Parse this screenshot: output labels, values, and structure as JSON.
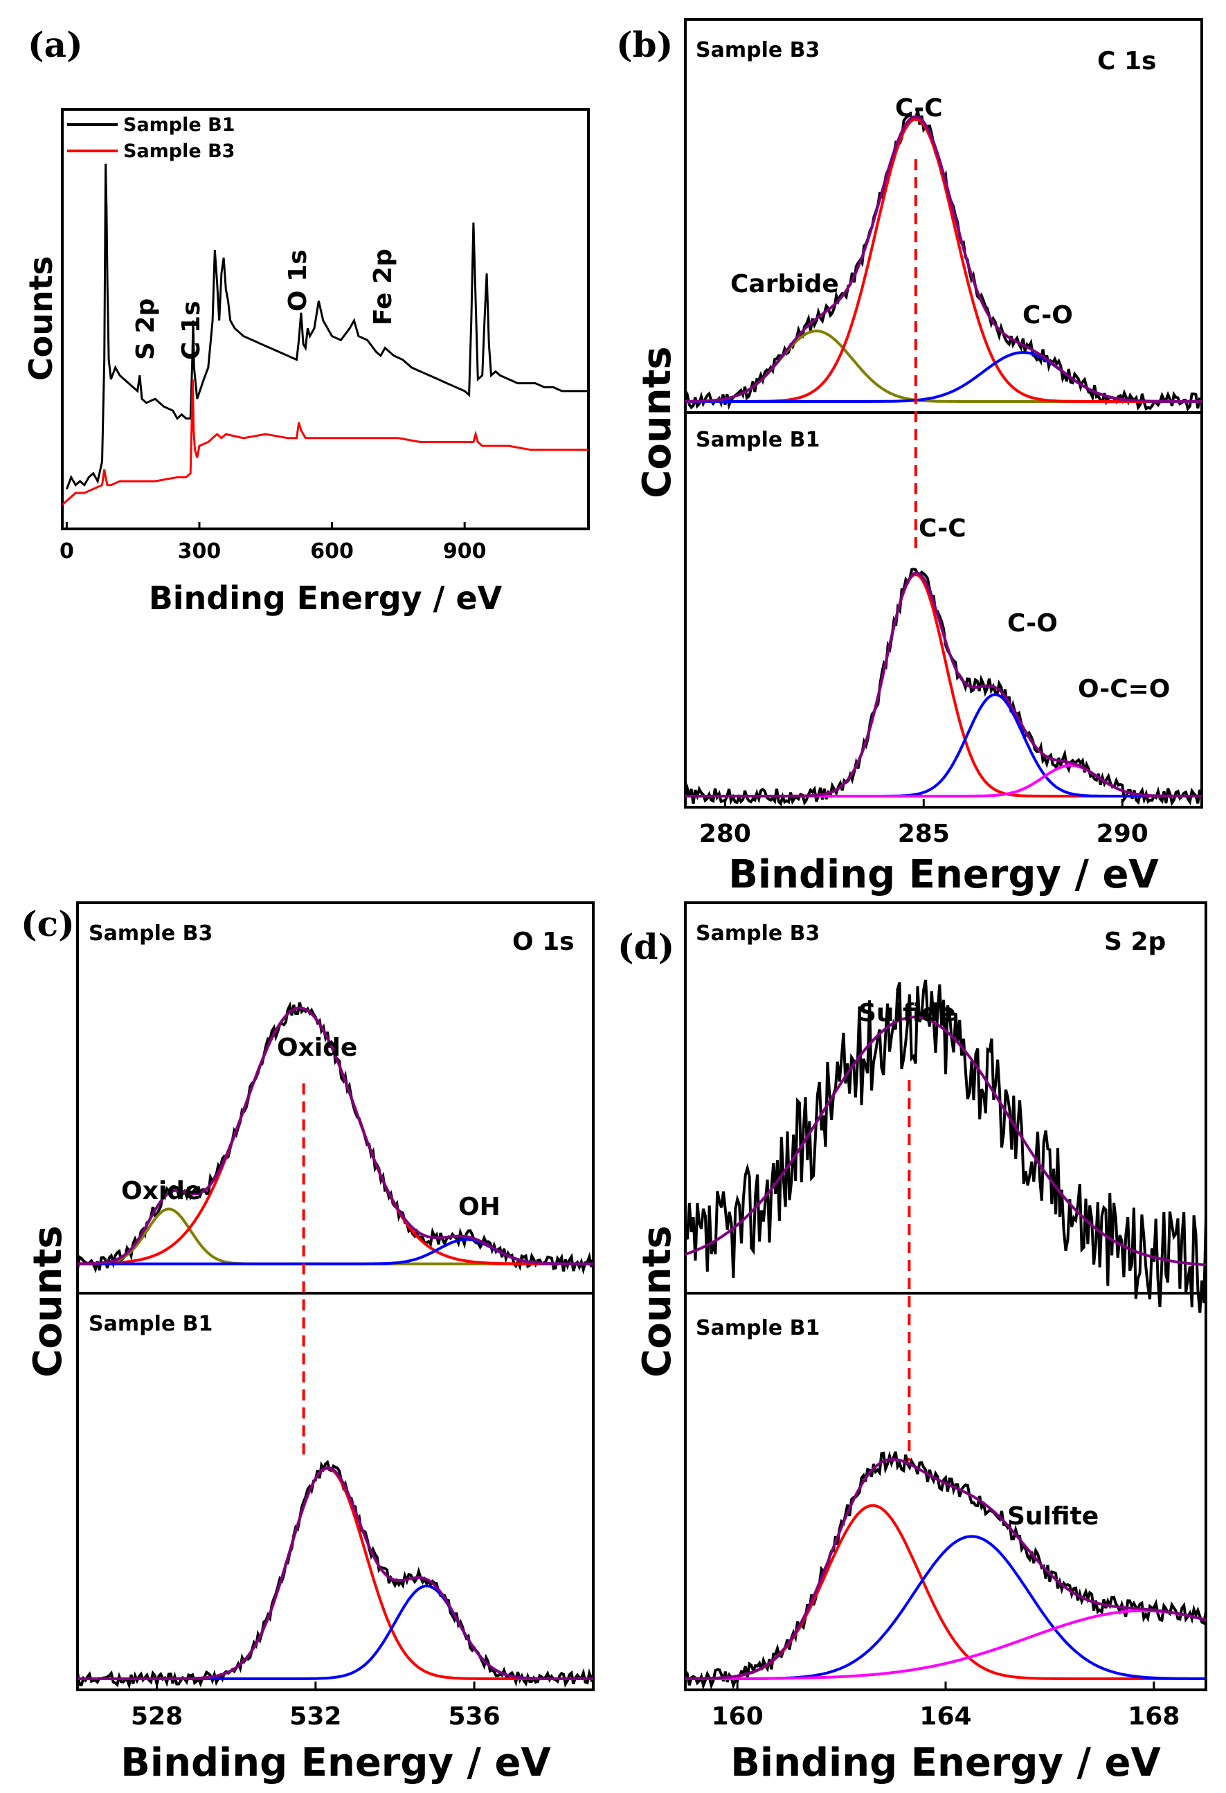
{
  "chart_data": [
    {
      "id": "a",
      "type": "line",
      "panel_label": "(a)",
      "xlabel": "Binding Energy / eV",
      "ylabel": "Counts",
      "xlim": [
        -10,
        1180
      ],
      "ylim": [
        0,
        1
      ],
      "xticks": [
        0,
        300,
        600,
        900
      ],
      "legend_position": "top-left",
      "series": [
        {
          "name": "Sample B1",
          "color": "#000000",
          "x": [
            0,
            10,
            20,
            30,
            40,
            50,
            60,
            70,
            80,
            85,
            88,
            90,
            92,
            95,
            100,
            110,
            120,
            140,
            160,
            165,
            170,
            180,
            200,
            220,
            240,
            250,
            260,
            270,
            280,
            284,
            286,
            288,
            295,
            310,
            320,
            330,
            335,
            340,
            345,
            350,
            355,
            360,
            365,
            370,
            380,
            400,
            420,
            440,
            460,
            480,
            500,
            520,
            525,
            530,
            535,
            540,
            545,
            550,
            560,
            570,
            580,
            590,
            600,
            620,
            640,
            650,
            660,
            680,
            700,
            710,
            720,
            740,
            760,
            780,
            800,
            820,
            840,
            860,
            880,
            900,
            910,
            915,
            920,
            925,
            930,
            940,
            945,
            950,
            955,
            960,
            970,
            980,
            1000,
            1020,
            1040,
            1060,
            1080,
            1100,
            1120,
            1140,
            1160,
            1180
          ],
          "y": [
            0.07,
            0.1,
            0.08,
            0.09,
            0.08,
            0.1,
            0.11,
            0.09,
            0.14,
            0.4,
            0.9,
            0.78,
            0.6,
            0.4,
            0.35,
            0.38,
            0.36,
            0.34,
            0.32,
            0.36,
            0.3,
            0.29,
            0.3,
            0.28,
            0.27,
            0.25,
            0.26,
            0.25,
            0.25,
            0.4,
            0.5,
            0.38,
            0.3,
            0.35,
            0.38,
            0.5,
            0.68,
            0.6,
            0.5,
            0.62,
            0.66,
            0.58,
            0.55,
            0.5,
            0.48,
            0.46,
            0.45,
            0.44,
            0.43,
            0.42,
            0.41,
            0.4,
            0.45,
            0.52,
            0.44,
            0.43,
            0.48,
            0.46,
            0.48,
            0.55,
            0.5,
            0.48,
            0.46,
            0.45,
            0.48,
            0.5,
            0.46,
            0.45,
            0.42,
            0.41,
            0.43,
            0.41,
            0.4,
            0.38,
            0.37,
            0.36,
            0.35,
            0.34,
            0.33,
            0.32,
            0.31,
            0.5,
            0.75,
            0.55,
            0.35,
            0.36,
            0.5,
            0.62,
            0.44,
            0.36,
            0.37,
            0.36,
            0.35,
            0.34,
            0.34,
            0.34,
            0.33,
            0.33,
            0.32,
            0.32,
            0.32,
            0.32
          ]
        },
        {
          "name": "Sample B3",
          "color": "#ff0000",
          "x": [
            -10,
            0,
            10,
            20,
            40,
            60,
            80,
            85,
            88,
            92,
            100,
            120,
            150,
            200,
            250,
            270,
            280,
            283,
            285,
            287,
            290,
            295,
            300,
            320,
            340,
            350,
            360,
            400,
            450,
            500,
            520,
            525,
            530,
            540,
            560,
            600,
            650,
            700,
            750,
            800,
            850,
            900,
            920,
            925,
            930,
            940,
            1000,
            1050,
            1100,
            1150,
            1180
          ],
          "y": [
            0.03,
            0.04,
            0.05,
            0.06,
            0.06,
            0.07,
            0.08,
            0.12,
            0.1,
            0.08,
            0.08,
            0.09,
            0.09,
            0.09,
            0.1,
            0.1,
            0.11,
            0.25,
            0.35,
            0.22,
            0.17,
            0.15,
            0.18,
            0.19,
            0.21,
            0.2,
            0.21,
            0.2,
            0.21,
            0.2,
            0.2,
            0.24,
            0.22,
            0.2,
            0.2,
            0.2,
            0.2,
            0.2,
            0.2,
            0.19,
            0.19,
            0.19,
            0.19,
            0.21,
            0.19,
            0.18,
            0.18,
            0.17,
            0.17,
            0.17,
            0.17
          ]
        }
      ],
      "annotations": [
        {
          "text": "S 2p",
          "x": 165
        },
        {
          "text": "C 1s",
          "x": 285
        },
        {
          "text": "O 1s",
          "x": 531
        },
        {
          "text": "Fe 2p",
          "x": 710
        }
      ]
    },
    {
      "id": "b",
      "type": "line",
      "panel_label": "(b)",
      "title": "C 1s",
      "xlabel": "Binding Energy / eV",
      "ylabel": "Counts",
      "xlim": [
        279,
        292
      ],
      "xticks": [
        280,
        285,
        290
      ],
      "reference_line_x": 284.8,
      "subpanels": [
        {
          "name": "Sample B3",
          "baseline": 0.0,
          "peaks": [
            {
              "label": "Carbide",
              "center": 282.3,
              "sigma": 0.9,
              "amp": 0.23,
              "color": "#808000"
            },
            {
              "label": "C-C",
              "center": 284.8,
              "sigma": 1.0,
              "amp": 0.92,
              "color": "#ff0000"
            },
            {
              "label": "C-O",
              "center": 287.5,
              "sigma": 1.0,
              "amp": 0.16,
              "color": "#0000ff"
            }
          ],
          "envelope_color": "#800080",
          "raw_color": "#000000"
        },
        {
          "name": "Sample B1",
          "baseline": 0.0,
          "peaks": [
            {
              "label": "C-C",
              "center": 284.8,
              "sigma": 0.75,
              "amp": 0.72,
              "color": "#ff0000"
            },
            {
              "label": "C-O",
              "center": 286.8,
              "sigma": 0.7,
              "amp": 0.33,
              "color": "#0000ff"
            },
            {
              "label": "O-C=O",
              "center": 288.7,
              "sigma": 0.7,
              "amp": 0.1,
              "color": "#ff00ff"
            }
          ],
          "envelope_color": "#800080",
          "raw_color": "#000000"
        }
      ]
    },
    {
      "id": "c",
      "type": "line",
      "panel_label": "(c)",
      "title": "O 1s",
      "xlabel": "Binding Energy / eV",
      "ylabel": "Counts",
      "xlim": [
        526,
        539
      ],
      "xticks": [
        528,
        532,
        536
      ],
      "reference_line_x": 531.7,
      "subpanels": [
        {
          "name": "Sample B3",
          "baseline": 0.06,
          "peaks": [
            {
              "label": "Oxide",
              "center": 528.3,
              "sigma": 0.55,
              "amp": 0.18,
              "color": "#808000"
            },
            {
              "label": "Oxide",
              "center": 531.6,
              "sigma": 1.4,
              "amp": 0.84,
              "color": "#ff0000"
            },
            {
              "label": "OH",
              "center": 535.8,
              "sigma": 0.7,
              "amp": 0.08,
              "color": "#0000ff"
            }
          ],
          "envelope_color": "#800080",
          "raw_color": "#000000"
        },
        {
          "name": "Sample B1",
          "baseline": 0.0,
          "peaks": [
            {
              "label": "",
              "center": 532.3,
              "sigma": 0.95,
              "amp": 0.68,
              "color": "#ff0000"
            },
            {
              "label": "",
              "center": 534.8,
              "sigma": 0.8,
              "amp": 0.3,
              "color": "#0000ff"
            }
          ],
          "envelope_color": "#800080",
          "raw_color": "#000000"
        }
      ]
    },
    {
      "id": "d",
      "type": "line",
      "panel_label": "(d)",
      "title": "S 2p",
      "xlabel": "Binding Energy / eV",
      "ylabel": "Counts",
      "xlim": [
        159,
        169
      ],
      "xticks": [
        160,
        164,
        168
      ],
      "reference_line_x": 163.3,
      "subpanels": [
        {
          "name": "Sample B3",
          "baseline": 0.05,
          "peaks": [
            {
              "label": "Sulfide",
              "center": 163.4,
              "sigma": 1.8,
              "amp": 0.82,
              "color": "#800080"
            }
          ],
          "envelope_color": "#800080",
          "raw_color": "#000000",
          "show_fit_only_envelope": true
        },
        {
          "name": "Sample B1",
          "baseline": 0.0,
          "peaks": [
            {
              "label": "",
              "center": 162.6,
              "sigma": 0.9,
              "amp": 0.56,
              "color": "#ff0000"
            },
            {
              "label": "Sulfite",
              "center": 164.5,
              "sigma": 1.1,
              "amp": 0.46,
              "color": "#0000ff"
            },
            {
              "label": "",
              "center": 167.8,
              "sigma": 2.2,
              "amp": 0.22,
              "color": "#ff00ff"
            }
          ],
          "envelope_color": "#800080",
          "raw_color": "#000000"
        }
      ]
    }
  ]
}
